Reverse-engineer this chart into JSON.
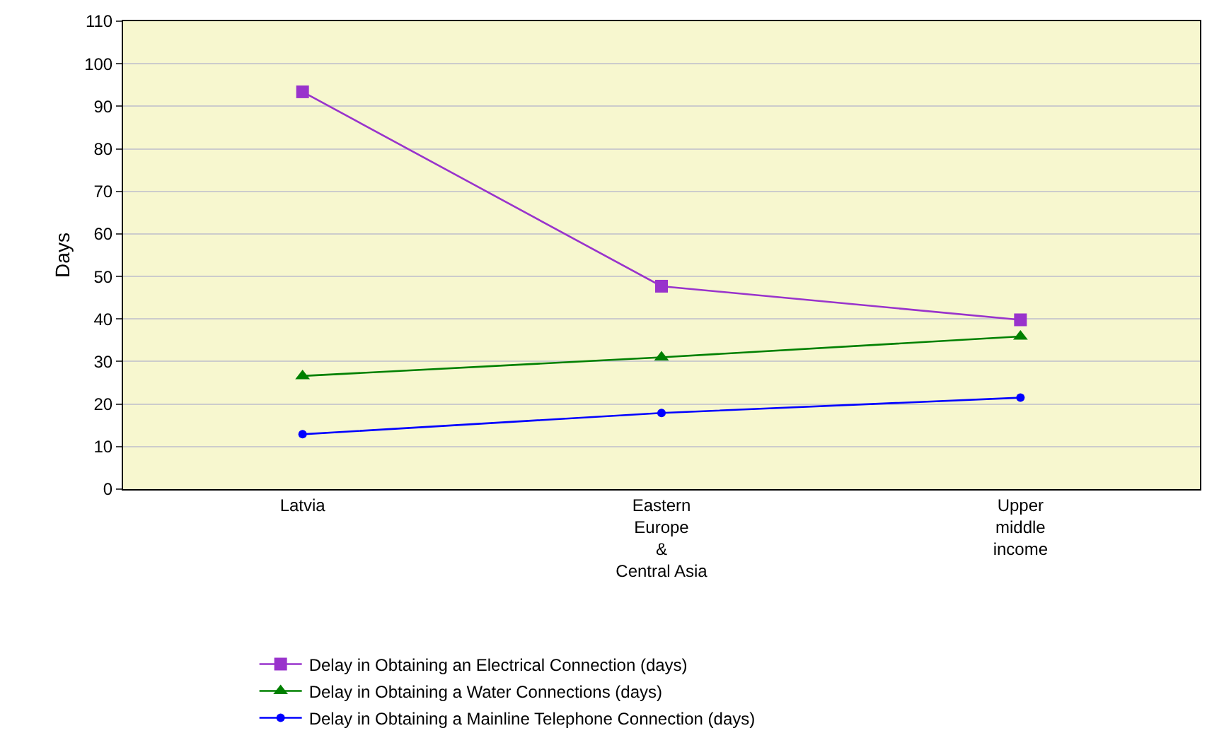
{
  "chart_data": {
    "type": "line",
    "ylabel": "Days",
    "categories": [
      "Latvia",
      "Eastern\nEurope\n&\nCentral Asia",
      "Upper\nmiddle\nincome"
    ],
    "series": [
      {
        "name": "Delay in Obtaining an Electrical Connection (days)",
        "color": "#9933cc",
        "marker": "square",
        "values": [
          93.4,
          47.7,
          39.8
        ]
      },
      {
        "name": "Delay in Obtaining a Water Connections (days)",
        "color": "#008000",
        "marker": "triangle",
        "values": [
          26.6,
          31.0,
          35.9
        ]
      },
      {
        "name": "Delay in Obtaining a Mainline Telephone Connection (days)",
        "color": "#0000ff",
        "marker": "circle",
        "values": [
          12.9,
          17.9,
          21.5
        ]
      }
    ],
    "ylim": [
      0,
      110
    ],
    "yticks": [
      0,
      10,
      20,
      30,
      40,
      50,
      60,
      70,
      80,
      90,
      100,
      110
    ],
    "grid": "y",
    "legend": "bottom",
    "line_style": "solid"
  }
}
